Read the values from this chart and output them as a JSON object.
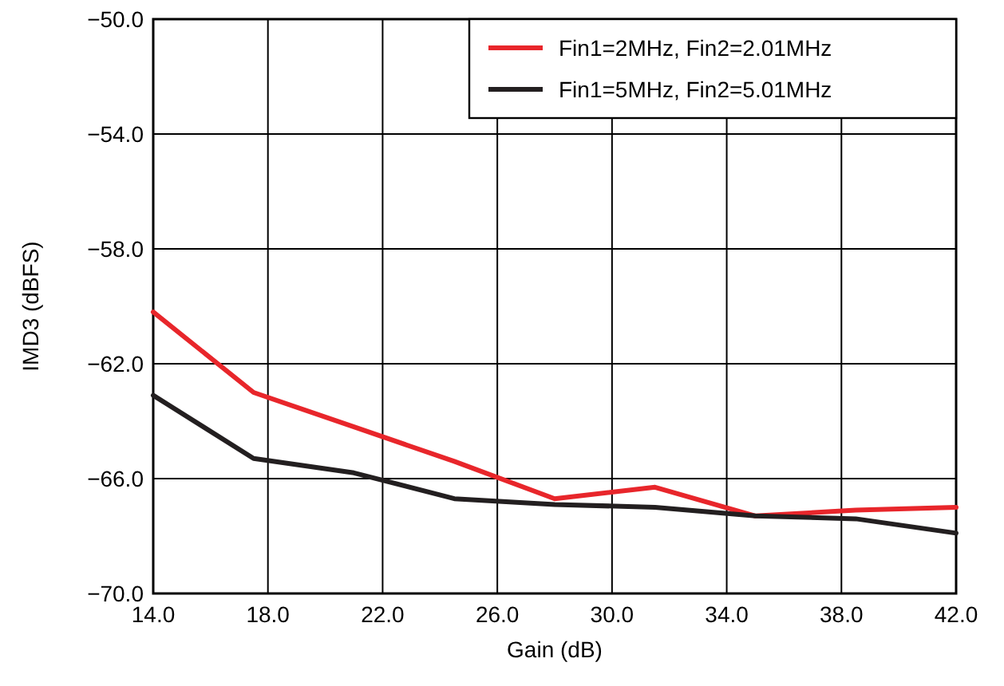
{
  "chart_data": {
    "type": "line",
    "xlabel": "Gain (dB)",
    "ylabel": "IMD3 (dBFS)",
    "x": [
      14,
      17.5,
      21,
      24.5,
      28,
      31.5,
      35,
      38.5,
      42
    ],
    "series": [
      {
        "name": "Fin1=2MHz, Fin2=2.01MHz",
        "color": "#e8262b",
        "values": [
          -60.2,
          -63.0,
          -64.2,
          -65.4,
          -66.7,
          -66.3,
          -67.3,
          -67.1,
          -67.0
        ]
      },
      {
        "name": "Fin1=5MHz, Fin2=5.01MHz",
        "color": "#231f20",
        "values": [
          -63.1,
          -65.3,
          -65.8,
          -66.7,
          -66.9,
          -67.0,
          -67.3,
          -67.4,
          -67.9
        ]
      }
    ],
    "xlim": [
      14,
      42
    ],
    "ylim": [
      -70,
      -50
    ],
    "xticks": [
      {
        "value": 14,
        "label": "14.0"
      },
      {
        "value": 18,
        "label": "18.0"
      },
      {
        "value": 22,
        "label": "22.0"
      },
      {
        "value": 26,
        "label": "26.0"
      },
      {
        "value": 30,
        "label": "30.0"
      },
      {
        "value": 34,
        "label": "34.0"
      },
      {
        "value": 38,
        "label": "38.0"
      },
      {
        "value": 42,
        "label": "42.0"
      }
    ],
    "yticks": [
      {
        "value": -70,
        "label": "−70.0"
      },
      {
        "value": -66,
        "label": "−66.0"
      },
      {
        "value": -62,
        "label": "−62.0"
      },
      {
        "value": -58,
        "label": "−58.0"
      },
      {
        "value": -54,
        "label": "−54.0"
      },
      {
        "value": -50,
        "label": "−50.0"
      }
    ],
    "grid": true,
    "legend": "top right",
    "marker": "none",
    "line_style": "solid"
  }
}
